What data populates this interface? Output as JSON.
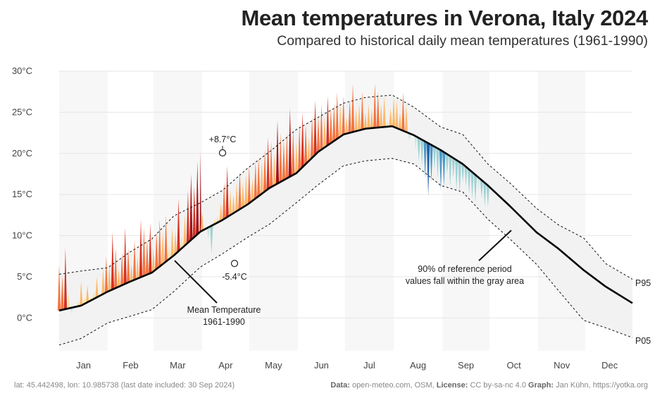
{
  "chart_data": {
    "type": "area",
    "title": "Mean temperatures in Verona, Italy 2024",
    "subtitle": "Compared to historical daily mean temperatures (1961-1990)",
    "unit": "°C",
    "ylim": [
      -4,
      30
    ],
    "yticks": [
      "0°C",
      "5°C",
      "10°C",
      "15°C",
      "20°C",
      "25°C",
      "30°C"
    ],
    "ytick_values": [
      0,
      5,
      10,
      15,
      20,
      25,
      30
    ],
    "months": [
      "Jan",
      "Feb",
      "Mar",
      "Apr",
      "May",
      "Jun",
      "Jul",
      "Aug",
      "Sep",
      "Oct",
      "Nov",
      "Dec"
    ],
    "grid": true,
    "colors": {
      "band": "#f2f2f2",
      "above": [
        "#fde2a3",
        "#fcb96b",
        "#f4743f",
        "#d7301f",
        "#a50f15"
      ],
      "below": [
        "#cfe9e1",
        "#9fd1d4",
        "#4a98c9",
        "#1f5ea8",
        "#0d3b80"
      ]
    },
    "series": [
      {
        "name": "Mean Temperature 1961-1990",
        "x": [
          1,
          15,
          32,
          46,
          60,
          74,
          91,
          105,
          121,
          135,
          152,
          166,
          182,
          196,
          213,
          227,
          244,
          258,
          274,
          288,
          305,
          319,
          335,
          349,
          366
        ],
        "values": [
          0.9,
          1.5,
          3.2,
          4.4,
          5.5,
          7.6,
          10.5,
          11.9,
          13.8,
          15.8,
          17.6,
          20.2,
          22.3,
          23.0,
          23.3,
          22.2,
          20.4,
          18.7,
          16.1,
          13.6,
          10.4,
          8.4,
          5.8,
          3.8,
          1.8
        ]
      },
      {
        "name": "P95",
        "x": [
          1,
          15,
          32,
          46,
          60,
          74,
          91,
          105,
          121,
          135,
          152,
          166,
          182,
          196,
          213,
          227,
          244,
          258,
          274,
          288,
          305,
          319,
          335,
          349,
          366
        ],
        "values": [
          5.3,
          5.7,
          6.1,
          8.0,
          9.6,
          12.4,
          14.0,
          15.5,
          18.2,
          20.2,
          22.9,
          24.4,
          26.1,
          26.8,
          27.1,
          25.6,
          23.2,
          22.3,
          18.7,
          16.4,
          13.3,
          11.3,
          9.7,
          6.6,
          4.7
        ]
      },
      {
        "name": "P05",
        "x": [
          1,
          15,
          32,
          46,
          60,
          74,
          91,
          105,
          121,
          135,
          152,
          166,
          182,
          196,
          213,
          227,
          244,
          258,
          274,
          288,
          305,
          319,
          335,
          349,
          366
        ],
        "values": [
          -3.3,
          -2.5,
          -0.6,
          0.2,
          1.0,
          3.2,
          6.2,
          7.8,
          9.8,
          11.4,
          14.0,
          16.2,
          18.5,
          19.1,
          19.4,
          18.7,
          16.1,
          15.3,
          12.0,
          9.6,
          6.5,
          3.3,
          -0.3,
          -1.2,
          -2.4
        ]
      },
      {
        "name": "2024",
        "x": [
          1,
          3,
          5,
          7,
          9,
          11,
          13,
          15,
          17,
          19,
          21,
          23,
          25,
          27,
          29,
          31,
          33,
          35,
          37,
          39,
          41,
          43,
          45,
          47,
          49,
          51,
          53,
          55,
          57,
          59,
          61,
          63,
          65,
          67,
          69,
          71,
          73,
          75,
          77,
          79,
          81,
          83,
          85,
          87,
          89,
          91,
          92,
          94,
          96,
          98,
          100,
          102,
          104,
          106,
          108,
          110,
          112,
          114,
          116,
          118,
          120,
          122,
          124,
          126,
          128,
          130,
          132,
          134,
          136,
          138,
          140,
          142,
          144,
          146,
          148,
          150,
          152,
          154,
          156,
          158,
          160,
          162,
          164,
          166,
          168,
          170,
          172,
          174,
          176,
          178,
          180,
          182,
          184,
          186,
          188,
          190,
          192,
          194,
          196,
          198,
          200,
          202,
          204,
          206,
          208,
          210,
          212,
          214,
          216,
          218,
          220,
          222,
          224,
          226,
          228,
          230,
          232,
          234,
          236,
          238,
          240,
          242,
          244,
          246,
          248,
          250,
          252,
          254,
          256,
          258,
          260,
          262,
          264,
          266,
          268,
          270,
          272,
          274
        ],
        "values": [
          6.5,
          5.2,
          8.5,
          3.0,
          0.5,
          1.5,
          2.0,
          4.5,
          2.5,
          4.0,
          2.5,
          3.2,
          5.0,
          3.0,
          6.0,
          7.5,
          6.5,
          10.5,
          8.5,
          6.0,
          8.0,
          11.0,
          8.5,
          6.5,
          9.5,
          7.5,
          12.0,
          11.0,
          9.5,
          11.5,
          8.5,
          10.5,
          12.0,
          10.5,
          12.5,
          9.0,
          11.0,
          10.5,
          14.5,
          10.0,
          12.5,
          15.5,
          17.5,
          16.0,
          19.0,
          20.2,
          13.0,
          11.0,
          9.5,
          7.8,
          12.0,
          12.5,
          14.0,
          16.5,
          18.5,
          15.5,
          15.0,
          16.5,
          17.8,
          16.5,
          17.5,
          18.5,
          17.0,
          19.0,
          19.5,
          19.0,
          20.5,
          22.0,
          21.5,
          20.0,
          24.0,
          22.5,
          21.5,
          22.5,
          25.5,
          23.0,
          21.5,
          23.5,
          25.0,
          23.5,
          22.0,
          24.5,
          26.5,
          24.5,
          26.0,
          24.5,
          27.0,
          25.5,
          26.0,
          27.5,
          26.0,
          27.0,
          24.5,
          26.5,
          28.5,
          25.5,
          26.0,
          27.5,
          25.0,
          26.0,
          25.5,
          28.5,
          27.5,
          26.0,
          27.0,
          24.0,
          25.5,
          27.0,
          26.5,
          25.0,
          27.5,
          26.0,
          21.5,
          22.5,
          20.5,
          19.0,
          18.5,
          17.0,
          14.8,
          16.5,
          18.0,
          17.0,
          15.5,
          16.0,
          17.5,
          16.0,
          17.0,
          15.5,
          15.0,
          16.5,
          16.0,
          15.0,
          14.5,
          14.0,
          15.5,
          14.5,
          13.5,
          13.5
        ]
      }
    ],
    "annotations": {
      "max_label": "+8.7°C",
      "min_label": "-5.4°C",
      "mean_label_line1": "Mean Temperature",
      "mean_label_line2": "1961-1990",
      "band_label_line1": "90% of reference period",
      "band_label_line2": "values fall within the gray area",
      "p95_label": "P95",
      "p05_label": "P05"
    }
  },
  "footer": {
    "left": "lat: 45.442498, lon: 10.985738 (last date included: 30 Sep 2024)",
    "data_label": "Data:",
    "data_value": " open-meteo.com, OSM, ",
    "license_label": "License:",
    "license_value": " CC by-sa-nc 4.0  ",
    "graph_label": "Graph:",
    "graph_value": " Jan Kühn, https://yotka.org"
  }
}
